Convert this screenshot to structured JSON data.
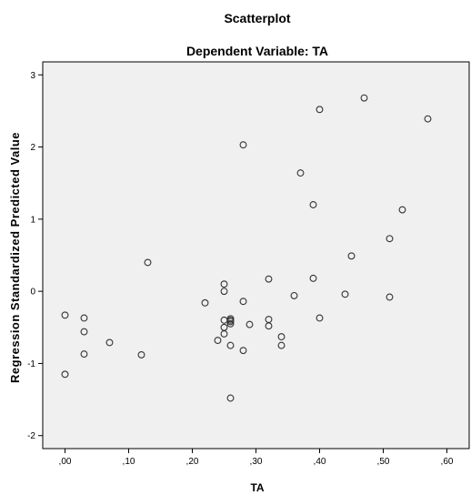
{
  "chart_data": {
    "type": "scatter",
    "title": "Scatterplot",
    "subtitle": "Dependent Variable: TA",
    "xlabel": "TA",
    "ylabel": "Regression Standardized Predicted Value",
    "xlim": [
      -0.035,
      0.635
    ],
    "ylim": [
      -2.18,
      3.18
    ],
    "xticks": [
      0.0,
      0.1,
      0.2,
      0.3,
      0.4,
      0.5,
      0.6
    ],
    "xtick_labels": [
      ",00",
      ",10",
      ",20",
      ",30",
      ",40",
      ",50",
      ",60"
    ],
    "yticks": [
      -2,
      -1,
      0,
      1,
      2,
      3
    ],
    "ytick_labels": [
      "-2",
      "-1",
      "0",
      "1",
      "2",
      "3"
    ],
    "grid": false,
    "colors": {
      "plot_background": "#f0f0f0",
      "marker": "#333333",
      "axis": "#000000"
    },
    "series": [
      {
        "marker": "open-circle",
        "points": [
          [
            0.0,
            -0.33
          ],
          [
            0.0,
            -1.15
          ],
          [
            0.03,
            -0.37
          ],
          [
            0.03,
            -0.56
          ],
          [
            0.03,
            -0.87
          ],
          [
            0.07,
            -0.71
          ],
          [
            0.12,
            -0.88
          ],
          [
            0.13,
            0.4
          ],
          [
            0.22,
            -0.16
          ],
          [
            0.24,
            -0.68
          ],
          [
            0.25,
            0.1
          ],
          [
            0.25,
            0.0
          ],
          [
            0.25,
            -0.4
          ],
          [
            0.25,
            -0.5
          ],
          [
            0.25,
            -0.59
          ],
          [
            0.26,
            -0.38
          ],
          [
            0.26,
            -0.4
          ],
          [
            0.26,
            -0.42
          ],
          [
            0.26,
            -0.45
          ],
          [
            0.26,
            -0.75
          ],
          [
            0.26,
            -1.48
          ],
          [
            0.28,
            2.03
          ],
          [
            0.28,
            -0.14
          ],
          [
            0.28,
            -0.82
          ],
          [
            0.29,
            -0.46
          ],
          [
            0.32,
            0.17
          ],
          [
            0.32,
            -0.39
          ],
          [
            0.32,
            -0.48
          ],
          [
            0.34,
            -0.63
          ],
          [
            0.34,
            -0.75
          ],
          [
            0.36,
            -0.06
          ],
          [
            0.37,
            1.64
          ],
          [
            0.39,
            1.2
          ],
          [
            0.39,
            0.18
          ],
          [
            0.4,
            2.52
          ],
          [
            0.4,
            -0.37
          ],
          [
            0.44,
            -0.04
          ],
          [
            0.45,
            0.49
          ],
          [
            0.47,
            2.68
          ],
          [
            0.51,
            0.73
          ],
          [
            0.51,
            -0.08
          ],
          [
            0.53,
            1.13
          ],
          [
            0.57,
            2.39
          ]
        ]
      }
    ]
  }
}
